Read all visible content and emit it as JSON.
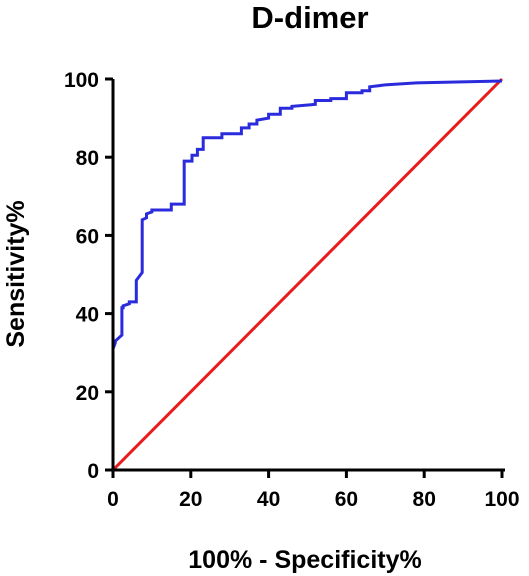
{
  "chart_data": {
    "type": "line",
    "title": "D-dimer",
    "xlabel": "100% - Specificity%",
    "ylabel": "Sensitivity%",
    "xlim": [
      0,
      100
    ],
    "ylim": [
      0,
      100
    ],
    "xticks": [
      0,
      20,
      40,
      60,
      80,
      100
    ],
    "yticks": [
      0,
      20,
      40,
      60,
      80,
      100
    ],
    "grid": false,
    "series": [
      {
        "color": "#2b2bde",
        "x": [
          0,
          0,
          0,
          0.6,
          0.6,
          2.3,
          2.3,
          2.6,
          2.6,
          4.2,
          4.2,
          6,
          6,
          7.5,
          7.5,
          8.6,
          8.6,
          10,
          10,
          15,
          15,
          17,
          17,
          18.3,
          18.3,
          20.3,
          20.3,
          21.7,
          21.7,
          23.2,
          23.2,
          28,
          28,
          33,
          33,
          35,
          35,
          37,
          37,
          40,
          40,
          43,
          43,
          46,
          46,
          52,
          52,
          56,
          56,
          60,
          60,
          64,
          64,
          66,
          66,
          70,
          70,
          78,
          78,
          100
        ],
        "y": [
          0,
          31,
          31,
          32.5,
          33,
          34.5,
          41.5,
          41.5,
          42,
          42.5,
          43,
          43,
          48.5,
          50.5,
          64,
          64.5,
          65.5,
          66,
          66.5,
          66.5,
          68,
          68,
          68,
          68,
          79,
          79,
          80.5,
          80.5,
          82,
          82,
          85,
          85,
          86,
          86,
          87.5,
          87.5,
          88.5,
          88.5,
          89.5,
          90,
          91,
          91,
          92.5,
          92.5,
          93,
          93.5,
          94.5,
          94.5,
          95,
          95,
          96.5,
          96.5,
          97,
          97,
          98,
          98.5,
          98.5,
          99,
          99,
          99.5
        ]
      },
      {
        "color": "#e81c1c",
        "x": [
          0,
          100
        ],
        "y": [
          0,
          100
        ]
      }
    ]
  }
}
